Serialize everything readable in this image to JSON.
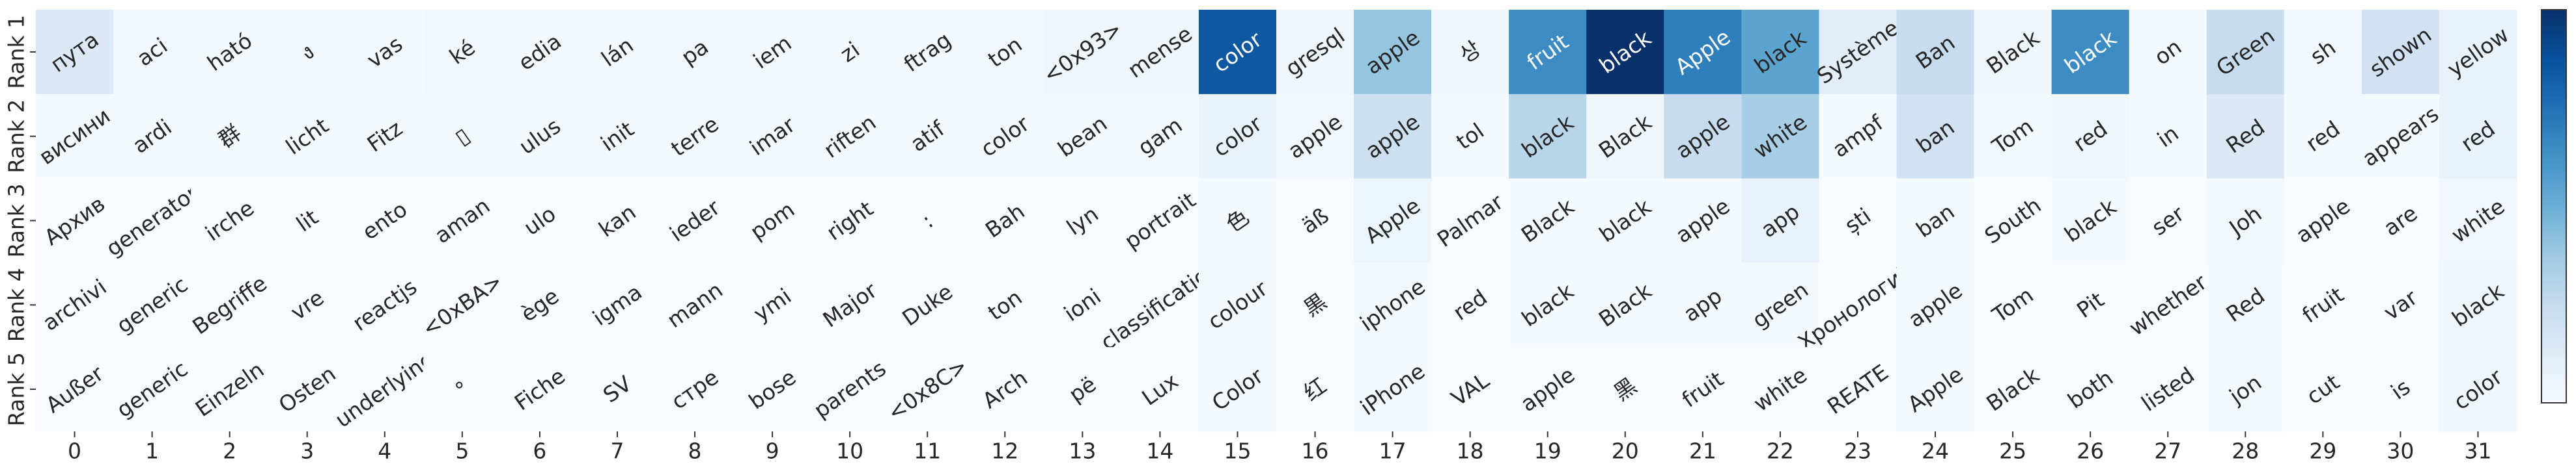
{
  "chart_data": {
    "type": "heatmap",
    "colormap": "Blues",
    "categories": [
      0,
      1,
      2,
      3,
      4,
      5,
      6,
      7,
      8,
      9,
      10,
      11,
      12,
      13,
      14,
      15,
      16,
      17,
      18,
      19,
      20,
      21,
      22,
      23,
      24,
      25,
      26,
      27,
      28,
      29,
      30,
      31
    ],
    "row_labels": [
      "Rank 1",
      "Rank 2",
      "Rank 3",
      "Rank 4",
      "Rank 5"
    ],
    "cell_labels": [
      [
        "пута",
        "aci",
        "ható",
        "ง",
        "vas",
        "ké",
        "edia",
        "lán",
        "pa",
        "iem",
        "zi",
        "ftrag",
        "ton",
        "<0x93>",
        "mense",
        "color",
        "gresql",
        "apple",
        "상",
        "fruit",
        "black",
        "Apple",
        "black",
        "Système",
        "Ban",
        "Black",
        "black",
        "on",
        "Green",
        "sh",
        "shown",
        "yellow"
      ],
      [
        "висини",
        "ardi",
        "群",
        "licht",
        "Fitz",
        "▯",
        "ulus",
        "init",
        "terre",
        "imar",
        "riften",
        "atif",
        "color",
        "bean",
        "gam",
        "color",
        "apple",
        "apple",
        "tol",
        "black",
        "Black",
        "apple",
        "white",
        "ampf",
        "ban",
        "Tom",
        "red",
        "in",
        "Red",
        "red",
        "appears",
        "red"
      ],
      [
        "Архив",
        "generator",
        "irche",
        "lit",
        "ento",
        "aman",
        "ulo",
        "kan",
        "ieder",
        "pom",
        "right",
        ":",
        "Bah",
        "lyn",
        "portrait",
        "色",
        "äß",
        "Apple",
        "Palmar",
        "Black",
        "black",
        "apple",
        "app",
        "ști",
        "ban",
        "South",
        "black",
        "ser",
        "Joh",
        "apple",
        "are",
        "white"
      ],
      [
        "archivi",
        "generic",
        "Begriffe",
        "vre",
        "reactjs",
        "<0xBA>",
        "ège",
        "igma",
        "mann",
        "ymi",
        "Major",
        "Duke",
        "ton",
        "ioni",
        "classification",
        "colour",
        "黒",
        "iphone",
        "red",
        "black",
        "Black",
        "app",
        "green",
        "Хронологија",
        "apple",
        "Tom",
        "Pit",
        "whether",
        "Red",
        "fruit",
        "var",
        "black"
      ],
      [
        "Außer",
        "generic",
        "Einzeln",
        "Osten",
        "underlying",
        "°",
        "Fiche",
        "SV",
        "стре",
        "bose",
        "parents",
        "<0x8C>",
        "Arch",
        "pë",
        "Lux",
        "Color",
        "红",
        "iPhone",
        "VAL",
        "apple",
        "黑",
        "fruit",
        "white",
        "REATE",
        "Apple",
        "Black",
        "both",
        "listed",
        "jon",
        "cut",
        "is",
        "color"
      ]
    ],
    "values": [
      [
        0.15,
        0.03,
        0.02,
        0.02,
        0.02,
        0.03,
        0.02,
        0.02,
        0.03,
        0.02,
        0.02,
        0.02,
        0.03,
        0.05,
        0.05,
        0.85,
        0.05,
        0.4,
        0.05,
        0.65,
        1.0,
        0.7,
        0.55,
        0.12,
        0.25,
        0.05,
        0.65,
        0.02,
        0.25,
        0.03,
        0.2,
        0.08
      ],
      [
        0.02,
        0.02,
        0.02,
        0.02,
        0.02,
        0.02,
        0.02,
        0.02,
        0.02,
        0.02,
        0.02,
        0.02,
        0.02,
        0.02,
        0.02,
        0.08,
        0.03,
        0.22,
        0.02,
        0.3,
        0.05,
        0.25,
        0.35,
        0.02,
        0.2,
        0.02,
        0.05,
        0.02,
        0.15,
        0.02,
        0.02,
        0.08
      ],
      [
        0.01,
        0.01,
        0.01,
        0.01,
        0.01,
        0.01,
        0.01,
        0.01,
        0.01,
        0.01,
        0.01,
        0.01,
        0.01,
        0.01,
        0.01,
        0.02,
        0.01,
        0.06,
        0.01,
        0.02,
        0.02,
        0.02,
        0.08,
        0.01,
        0.02,
        0.01,
        0.02,
        0.01,
        0.03,
        0.01,
        0.01,
        0.04
      ],
      [
        0.01,
        0.01,
        0.01,
        0.01,
        0.01,
        0.01,
        0.01,
        0.01,
        0.01,
        0.01,
        0.01,
        0.01,
        0.01,
        0.01,
        0.01,
        0.02,
        0.01,
        0.02,
        0.01,
        0.02,
        0.02,
        0.02,
        0.02,
        0.01,
        0.02,
        0.01,
        0.01,
        0.01,
        0.02,
        0.01,
        0.01,
        0.05
      ],
      [
        0.01,
        0.01,
        0.01,
        0.01,
        0.01,
        0.01,
        0.01,
        0.01,
        0.01,
        0.01,
        0.01,
        0.01,
        0.01,
        0.01,
        0.01,
        0.02,
        0.01,
        0.02,
        0.01,
        0.01,
        0.01,
        0.01,
        0.01,
        0.01,
        0.02,
        0.01,
        0.01,
        0.01,
        0.02,
        0.01,
        0.01,
        0.05
      ]
    ]
  }
}
